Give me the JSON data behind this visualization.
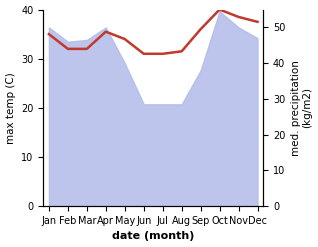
{
  "months": [
    "Jan",
    "Feb",
    "Mar",
    "Apr",
    "May",
    "Jun",
    "Jul",
    "Aug",
    "Sep",
    "Oct",
    "Nov",
    "Dec"
  ],
  "month_indices": [
    0,
    1,
    2,
    3,
    4,
    5,
    6,
    7,
    8,
    9,
    10,
    11
  ],
  "max_temp": [
    35.0,
    32.0,
    32.0,
    35.5,
    34.0,
    31.0,
    31.0,
    31.5,
    36.0,
    40.0,
    38.5,
    37.5
  ],
  "precipitation": [
    50.0,
    46.0,
    46.5,
    50.0,
    40.0,
    28.5,
    28.5,
    28.5,
    38.0,
    54.5,
    50.0,
    47.0
  ],
  "temp_ylim": [
    0,
    40
  ],
  "precip_ylim": [
    0,
    55
  ],
  "precip_color": "#b3bbea",
  "temp_line_color": "#c0392b",
  "xlabel": "date (month)",
  "ylabel_left": "max temp (C)",
  "ylabel_right": "med. precipitation\n(kg/m2)",
  "temp_yticks": [
    0,
    10,
    20,
    30,
    40
  ],
  "precip_yticks": [
    0,
    10,
    20,
    30,
    40,
    50
  ]
}
